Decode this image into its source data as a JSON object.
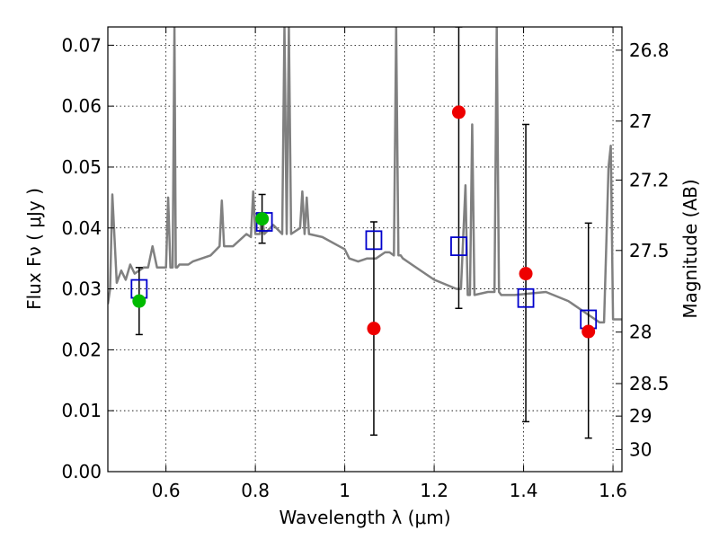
{
  "chart_data": {
    "type": "scatter",
    "title": "",
    "xlabel": "Wavelength  λ (μm)",
    "ylabel_left": "Flux  Fν  ( μJy )",
    "ylabel_right": "Magnitude (AB)",
    "xlim": [
      0.47,
      1.62
    ],
    "ylim": [
      0.0,
      0.073
    ],
    "grid": true,
    "x_ticks": [
      {
        "value": 0.6,
        "label": "0.6"
      },
      {
        "value": 0.8,
        "label": "0.8"
      },
      {
        "value": 1.0,
        "label": "1"
      },
      {
        "value": 1.2,
        "label": "1.2"
      },
      {
        "value": 1.4,
        "label": "1.4"
      },
      {
        "value": 1.6,
        "label": "1.6"
      }
    ],
    "y_ticks": [
      {
        "value": 0.0,
        "label": "0.00"
      },
      {
        "value": 0.01,
        "label": "0.01"
      },
      {
        "value": 0.02,
        "label": "0.02"
      },
      {
        "value": 0.03,
        "label": "0.03"
      },
      {
        "value": 0.04,
        "label": "0.04"
      },
      {
        "value": 0.05,
        "label": "0.05"
      },
      {
        "value": 0.06,
        "label": "0.06"
      },
      {
        "value": 0.07,
        "label": "0.07"
      }
    ],
    "right_ticks": [
      {
        "mag": 26.8,
        "label": "26.8"
      },
      {
        "mag": 27,
        "label": "27"
      },
      {
        "mag": 27.2,
        "label": "27.2"
      },
      {
        "mag": 27.5,
        "label": "27.5"
      },
      {
        "mag": 28,
        "label": "28"
      },
      {
        "mag": 28.5,
        "label": "28.5"
      },
      {
        "mag": 29,
        "label": "29"
      },
      {
        "mag": 30,
        "label": "30"
      }
    ],
    "colors": {
      "model": "#808080",
      "observed_hst": "#00bb00",
      "observed_ir": "#ee0000",
      "model_photometry": "#0000cc",
      "error_bar": "#000000",
      "grid": "#000000"
    },
    "series": [
      {
        "name": "model spectrum",
        "kind": "line",
        "x": [
          0.47,
          0.475,
          0.48,
          0.49,
          0.5,
          0.51,
          0.52,
          0.53,
          0.54,
          0.55,
          0.56,
          0.57,
          0.58,
          0.6,
          0.605,
          0.61,
          0.615,
          0.619,
          0.622,
          0.625,
          0.63,
          0.65,
          0.66,
          0.7,
          0.72,
          0.725,
          0.73,
          0.735,
          0.74,
          0.75,
          0.78,
          0.79,
          0.795,
          0.8,
          0.81,
          0.815,
          0.82,
          0.84,
          0.86,
          0.865,
          0.87,
          0.875,
          0.88,
          0.9,
          0.905,
          0.91,
          0.915,
          0.92,
          0.95,
          1.0,
          1.01,
          1.03,
          1.05,
          1.07,
          1.09,
          1.1,
          1.11,
          1.115,
          1.12,
          1.125,
          1.13,
          1.15,
          1.2,
          1.25,
          1.26,
          1.27,
          1.275,
          1.28,
          1.285,
          1.29,
          1.32,
          1.335,
          1.34,
          1.345,
          1.35,
          1.38,
          1.45,
          1.5,
          1.55,
          1.57,
          1.58,
          1.59,
          1.595,
          1.6,
          1.62
        ],
        "y": [
          0.0275,
          0.03,
          0.0455,
          0.031,
          0.033,
          0.0315,
          0.034,
          0.0325,
          0.033,
          0.0335,
          0.0335,
          0.037,
          0.0335,
          0.0335,
          0.045,
          0.0335,
          0.0335,
          0.073,
          0.0335,
          0.0335,
          0.034,
          0.034,
          0.0345,
          0.0355,
          0.037,
          0.0445,
          0.037,
          0.037,
          0.037,
          0.037,
          0.039,
          0.0385,
          0.046,
          0.039,
          0.039,
          0.042,
          0.039,
          0.0405,
          0.039,
          0.073,
          0.039,
          0.073,
          0.039,
          0.04,
          0.046,
          0.039,
          0.045,
          0.039,
          0.0385,
          0.0365,
          0.035,
          0.0345,
          0.035,
          0.035,
          0.036,
          0.036,
          0.0355,
          0.073,
          0.0355,
          0.0355,
          0.035,
          0.034,
          0.0315,
          0.03,
          0.03,
          0.047,
          0.029,
          0.029,
          0.057,
          0.029,
          0.0295,
          0.0295,
          0.073,
          0.0295,
          0.029,
          0.029,
          0.0295,
          0.028,
          0.0255,
          0.0245,
          0.0245,
          0.05,
          0.0535,
          0.025,
          0.025
        ]
      },
      {
        "name": "observed (optical)",
        "kind": "points",
        "x": [
          0.54,
          0.815
        ],
        "y": [
          0.028,
          0.0415
        ]
      },
      {
        "name": "observed (near-IR)",
        "kind": "points",
        "x": [
          1.065,
          1.255,
          1.405,
          1.545
        ],
        "y": [
          0.0235,
          0.059,
          0.0325,
          0.023
        ]
      },
      {
        "name": "model photometry",
        "kind": "squares",
        "x": [
          0.54,
          0.82,
          1.065,
          1.255,
          1.405,
          1.545
        ],
        "y": [
          0.03,
          0.041,
          0.038,
          0.037,
          0.0285,
          0.025
        ]
      }
    ],
    "error_bars": [
      {
        "x": 0.54,
        "y": 0.028,
        "low": 0.0225,
        "high": 0.0335
      },
      {
        "x": 0.815,
        "y": 0.0415,
        "low": 0.0375,
        "high": 0.0455
      },
      {
        "x": 1.065,
        "y": 0.0235,
        "low": 0.006,
        "high": 0.041
      },
      {
        "x": 1.255,
        "y": 0.059,
        "low": 0.0268,
        "high": 0.073
      },
      {
        "x": 1.405,
        "y": 0.0325,
        "low": 0.0082,
        "high": 0.057
      },
      {
        "x": 1.545,
        "y": 0.023,
        "low": 0.0055,
        "high": 0.0408
      }
    ]
  }
}
